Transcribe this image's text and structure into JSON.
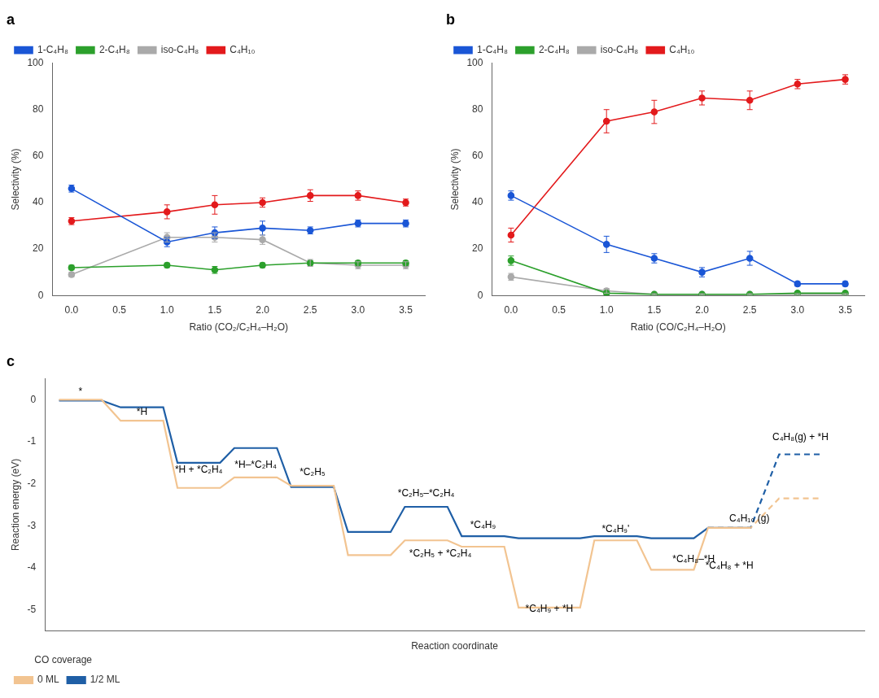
{
  "chart_data": [
    {
      "type": "line",
      "title": "a",
      "x": [
        0,
        1.0,
        1.5,
        2.0,
        2.5,
        3.0,
        3.5
      ],
      "series": [
        {
          "name": "1-C₄H₈",
          "color": "#1a56d6",
          "values": [
            46,
            23,
            27,
            29,
            28,
            31,
            31
          ],
          "errors": [
            1.5,
            2,
            2.5,
            3,
            1.5,
            1.5,
            1.5
          ]
        },
        {
          "name": "2-C₄H₈",
          "color": "#2ca02c",
          "values": [
            12,
            13,
            11,
            13,
            14,
            14,
            14
          ],
          "errors": [
            1,
            1,
            1.5,
            1,
            1,
            1,
            1
          ]
        },
        {
          "name": "iso-C₄H₈",
          "color": "#aaaaaa",
          "values": [
            9,
            25,
            25,
            24,
            14,
            13,
            13
          ],
          "errors": [
            1,
            2,
            2,
            2,
            1.5,
            1.5,
            1.5
          ]
        },
        {
          "name": "C₄H₁₀",
          "color": "#e31a1c",
          "values": [
            32,
            36,
            39,
            40,
            43,
            43,
            40
          ],
          "errors": [
            1.5,
            3,
            4,
            2,
            2.5,
            2,
            1.5
          ]
        }
      ],
      "xlabel": "Ratio (CO₂/C₂H₄–H₂O)",
      "ylabel": "Selectivity (%)",
      "xlim": [
        -0.2,
        3.7
      ],
      "ylim": [
        0,
        100
      ],
      "xticks": [
        {
          "value": 0,
          "label": "0.0"
        },
        0.5,
        {
          "value": 1.0,
          "label": "1.0"
        },
        1.5,
        {
          "value": 2.0,
          "label": "2.0"
        },
        2.5,
        {
          "value": 3.0,
          "label": "3.0"
        },
        3.5
      ],
      "yticks": [
        0,
        20,
        40,
        60,
        80,
        100
      ],
      "grid": false,
      "legend": "upper left",
      "marker": "circle"
    },
    {
      "type": "line",
      "title": "b",
      "x": [
        0,
        1.0,
        1.5,
        2.0,
        2.5,
        3.0,
        3.5
      ],
      "series": [
        {
          "name": "1-C₄H₈",
          "color": "#1a56d6",
          "values": [
            43,
            22,
            16,
            10,
            16,
            5,
            5
          ],
          "errors": [
            2,
            3.5,
            2,
            2,
            3,
            1,
            1
          ]
        },
        {
          "name": "2-C₄H₈",
          "color": "#2ca02c",
          "values": [
            15,
            1,
            0.5,
            0.5,
            0.5,
            1,
            1
          ],
          "errors": [
            2,
            0.5,
            0.3,
            0.3,
            0.3,
            0.5,
            0.5
          ]
        },
        {
          "name": "iso-C₄H₈",
          "color": "#aaaaaa",
          "values": [
            8,
            2,
            0.5,
            0.5,
            0.5,
            0.5,
            0.5
          ],
          "errors": [
            1.5,
            1,
            0.3,
            0.3,
            0.3,
            0.3,
            0.3
          ]
        },
        {
          "name": "C₄H₁₀",
          "color": "#e31a1c",
          "values": [
            26,
            75,
            79,
            85,
            84,
            91,
            93
          ],
          "errors": [
            3,
            5,
            5,
            3,
            4,
            2,
            2
          ]
        }
      ],
      "xlabel": "Ratio (CO/C₂H₄–H₂O)",
      "ylabel": "Selectivity (%)",
      "xlim": [
        -0.2,
        3.7
      ],
      "ylim": [
        0,
        100
      ],
      "xticks": [
        {
          "value": 0,
          "label": "0.0"
        },
        0.5,
        {
          "value": 1.0,
          "label": "1.0"
        },
        1.5,
        {
          "value": 2.0,
          "label": "2.0"
        },
        2.5,
        {
          "value": 3.0,
          "label": "3.0"
        },
        3.5
      ],
      "yticks": [
        0,
        20,
        40,
        60,
        80,
        100
      ],
      "grid": false,
      "legend": "upper left",
      "marker": "circle"
    },
    {
      "type": "line",
      "title": "c",
      "series": [
        {
          "name": "0 ML",
          "color": "#f2c491",
          "line_style": "solid",
          "x": [
            0.0,
            0.9,
            1.3,
            2.2,
            2.5,
            3.4,
            3.7,
            4.6,
            4.9,
            5.8,
            6.1,
            7.0,
            7.3,
            8.2,
            8.5,
            9.4,
            9.7,
            11.0,
            11.3,
            12.2,
            12.5,
            13.4,
            13.7,
            14.6
          ],
          "values": [
            0.0,
            0.0,
            -0.5,
            -0.5,
            -2.1,
            -2.1,
            -1.85,
            -1.85,
            -2.05,
            -2.05,
            -3.7,
            -3.7,
            -3.35,
            -3.35,
            -3.5,
            -3.5,
            -4.95,
            -4.95,
            -3.35,
            -3.35,
            -4.05,
            -4.05,
            -3.05,
            -3.05
          ]
        },
        {
          "name": "1/2 ML",
          "color": "#1f5fa6",
          "line_style": "solid",
          "x": [
            0.0,
            0.9,
            1.3,
            2.2,
            2.5,
            3.4,
            3.7,
            4.6,
            4.9,
            5.8,
            6.1,
            7.0,
            7.3,
            8.2,
            8.5,
            9.4,
            9.7,
            11.0,
            11.3,
            12.2,
            12.5,
            13.4,
            13.7,
            14.6
          ],
          "values": [
            -0.02,
            -0.02,
            -0.18,
            -0.18,
            -1.5,
            -1.5,
            -1.15,
            -1.15,
            -2.08,
            -2.08,
            -3.15,
            -3.15,
            -2.55,
            -2.55,
            -3.25,
            -3.25,
            -3.3,
            -3.3,
            -3.25,
            -3.25,
            -3.3,
            -3.3,
            -3.05,
            -3.05
          ]
        },
        {
          "name": "0 ML",
          "color": "#f2c491",
          "line_style": "dashed",
          "x": [
            13.7,
            14.6,
            15.2,
            16.1
          ],
          "values": [
            -3.05,
            -3.05,
            -2.35,
            -2.35
          ]
        },
        {
          "name": "1/2 ML",
          "color": "#1f5fa6",
          "line_style": "dashed",
          "x": [
            13.7,
            14.6,
            15.2,
            16.1
          ],
          "values": [
            -3.05,
            -3.05,
            -1.3,
            -1.3
          ]
        }
      ],
      "xlabel": "Reaction coordinate",
      "ylabel": "Reaction energy (eV)",
      "xlim": [
        -0.3,
        17.0
      ],
      "ylim": [
        -5.5,
        0.5
      ],
      "xticks": [],
      "yticks": [
        0,
        -1,
        -2,
        -3,
        -4,
        -5
      ],
      "tick_labels": "y",
      "grid": false,
      "legend": "lower left",
      "legend_title": "CO coverage",
      "marker": "none",
      "annotations": [
        {
          "text": "*",
          "x": 0.45,
          "y": 0.08
        },
        {
          "text": "*H",
          "x": 1.75,
          "y": -0.42
        },
        {
          "text": "*H + *C₂H₄",
          "x": 2.95,
          "y": -1.55
        },
        {
          "text": "*H–*C₂H₄",
          "x": 4.15,
          "y": -1.68
        },
        {
          "text": "*C₂H₅",
          "x": 5.35,
          "y": -1.85
        },
        {
          "text": "*C₂H₅ + *C₂H₄",
          "x": 8.05,
          "y": -3.55
        },
        {
          "text": "*C₂H₅–*C₂H₄",
          "x": 7.75,
          "y": -2.35
        },
        {
          "text": "*C₄H₉",
          "x": 8.95,
          "y": -3.1
        },
        {
          "text": "*C₄H₉ + *H",
          "x": 10.35,
          "y": -5.1
        },
        {
          "text": "*C₄H₉'",
          "x": 11.75,
          "y": -3.2
        },
        {
          "text": "*C₄H₈–*H",
          "x": 12.95,
          "y": -3.92
        },
        {
          "text": "*C₄H₈ + *H",
          "x": 14.15,
          "y": -3.85
        },
        {
          "text": "C₄H₁₀ (g)",
          "x": 14.15,
          "y": -2.95
        },
        {
          "text": "C₄H₈(g) + *H",
          "x": 15.65,
          "y": -1.02
        }
      ]
    }
  ]
}
